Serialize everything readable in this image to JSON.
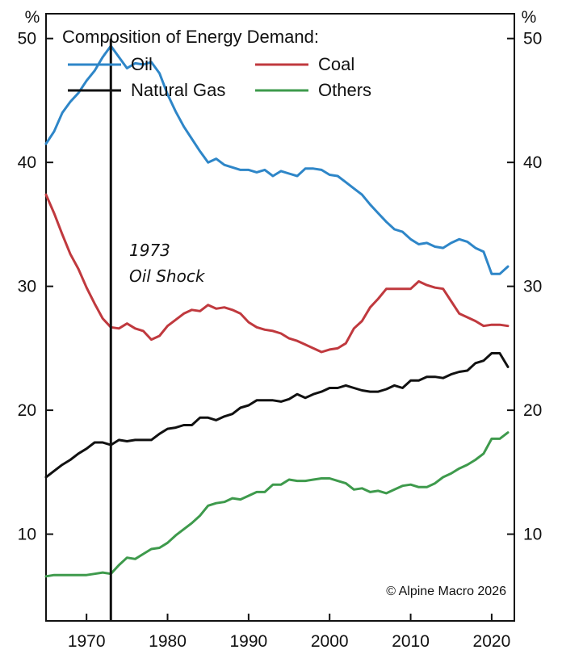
{
  "chart_data": {
    "type": "line",
    "title": "Composition of Energy Demand:",
    "ylabel_left": "%",
    "ylabel_right": "%",
    "xlim": [
      1965,
      2022.8
    ],
    "ylim": [
      3,
      52
    ],
    "yticks": [
      10,
      20,
      30,
      40,
      50
    ],
    "xticks": [
      1970,
      1980,
      1990,
      2000,
      2010,
      2020
    ],
    "x": [
      1965,
      1966,
      1967,
      1968,
      1969,
      1970,
      1971,
      1972,
      1973,
      1974,
      1975,
      1976,
      1977,
      1978,
      1979,
      1980,
      1981,
      1982,
      1983,
      1984,
      1985,
      1986,
      1987,
      1988,
      1989,
      1990,
      1991,
      1992,
      1993,
      1994,
      1995,
      1996,
      1997,
      1998,
      1999,
      2000,
      2001,
      2002,
      2003,
      2004,
      2005,
      2006,
      2007,
      2008,
      2009,
      2010,
      2011,
      2012,
      2013,
      2014,
      2015,
      2016,
      2017,
      2018,
      2019,
      2020,
      2021,
      2022
    ],
    "series": [
      {
        "name": "Oil",
        "color": "#2E86C8",
        "values": [
          41.5,
          42.5,
          44.0,
          44.9,
          45.6,
          46.6,
          47.4,
          48.5,
          49.4,
          48.5,
          47.6,
          48.0,
          47.9,
          48.1,
          47.2,
          45.5,
          44.1,
          42.9,
          41.9,
          40.9,
          40.0,
          40.3,
          39.8,
          39.6,
          39.4,
          39.4,
          39.2,
          39.4,
          38.9,
          39.3,
          39.1,
          38.9,
          39.5,
          39.5,
          39.4,
          39.0,
          38.9,
          38.4,
          37.9,
          37.4,
          36.6,
          35.9,
          35.2,
          34.6,
          34.4,
          33.8,
          33.4,
          33.5,
          33.2,
          33.1,
          33.5,
          33.8,
          33.6,
          33.1,
          32.8,
          31.0,
          31.0,
          31.6
        ]
      },
      {
        "name": "Coal",
        "color": "#C0393E",
        "values": [
          37.4,
          35.9,
          34.2,
          32.6,
          31.4,
          29.9,
          28.6,
          27.4,
          26.7,
          26.6,
          27.0,
          26.6,
          26.4,
          25.7,
          26.0,
          26.8,
          27.3,
          27.8,
          28.1,
          28.0,
          28.5,
          28.2,
          28.3,
          28.1,
          27.8,
          27.1,
          26.7,
          26.5,
          26.4,
          26.2,
          25.8,
          25.6,
          25.3,
          25.0,
          24.7,
          24.9,
          25.0,
          25.4,
          26.6,
          27.2,
          28.3,
          29.0,
          29.8,
          29.8,
          29.8,
          29.8,
          30.4,
          30.1,
          29.9,
          29.8,
          28.8,
          27.8,
          27.5,
          27.2,
          26.8,
          26.9,
          26.9,
          26.8
        ]
      },
      {
        "name": "Natural Gas",
        "color": "#111111",
        "values": [
          14.6,
          15.1,
          15.6,
          16.0,
          16.5,
          16.9,
          17.4,
          17.4,
          17.2,
          17.6,
          17.5,
          17.6,
          17.6,
          17.6,
          18.1,
          18.5,
          18.6,
          18.8,
          18.8,
          19.4,
          19.4,
          19.2,
          19.5,
          19.7,
          20.2,
          20.4,
          20.8,
          20.8,
          20.8,
          20.7,
          20.9,
          21.3,
          21.0,
          21.3,
          21.5,
          21.8,
          21.8,
          22.0,
          21.8,
          21.6,
          21.5,
          21.5,
          21.7,
          22.0,
          21.8,
          22.4,
          22.4,
          22.7,
          22.7,
          22.6,
          22.9,
          23.1,
          23.2,
          23.8,
          24.0,
          24.6,
          24.6,
          23.5
        ]
      },
      {
        "name": "Others",
        "color": "#3E9A4C",
        "values": [
          6.6,
          6.7,
          6.7,
          6.7,
          6.7,
          6.7,
          6.8,
          6.9,
          6.8,
          7.5,
          8.1,
          8.0,
          8.4,
          8.8,
          8.9,
          9.3,
          9.9,
          10.4,
          10.9,
          11.5,
          12.3,
          12.5,
          12.6,
          12.9,
          12.8,
          13.1,
          13.4,
          13.4,
          14.0,
          14.0,
          14.4,
          14.3,
          14.3,
          14.4,
          14.5,
          14.5,
          14.3,
          14.1,
          13.6,
          13.7,
          13.4,
          13.5,
          13.3,
          13.6,
          13.9,
          14.0,
          13.8,
          13.8,
          14.1,
          14.6,
          14.9,
          15.3,
          15.6,
          16.0,
          16.5,
          17.7,
          17.7,
          18.2
        ]
      }
    ],
    "legend": [
      {
        "label": "Oil",
        "color": "#2E86C8"
      },
      {
        "label": "Coal",
        "color": "#C0393E"
      },
      {
        "label": "Natural Gas",
        "color": "#111111"
      },
      {
        "label": "Others",
        "color": "#3E9A4C"
      }
    ],
    "annotation": {
      "x": 1973,
      "line1": "1973",
      "line2": "Oil Shock"
    },
    "copyright": "© Alpine Macro 2026"
  }
}
